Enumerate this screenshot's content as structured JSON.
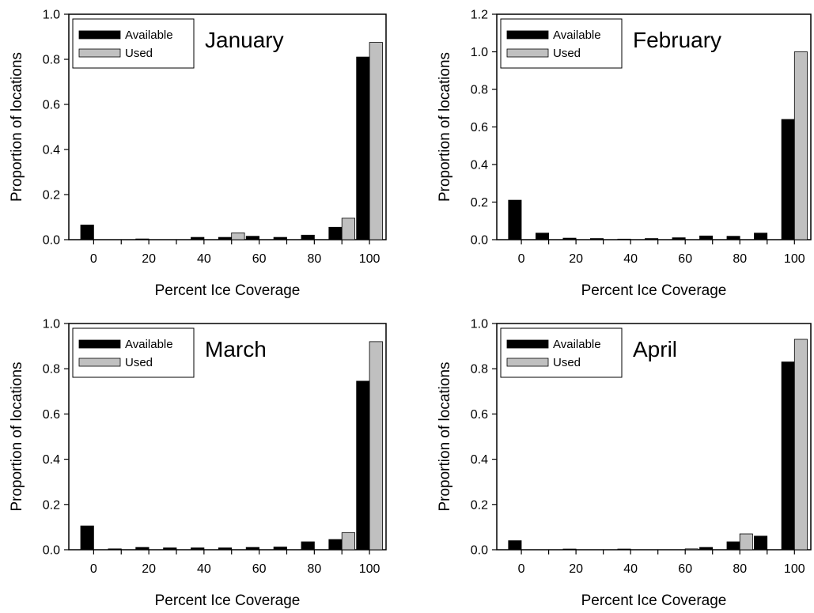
{
  "colors": {
    "available": "#000000",
    "used": "#c0c0c0",
    "axis": "#000000"
  },
  "chart_data": [
    {
      "type": "bar",
      "annotation": "January",
      "xlabel": "Percent Ice Coverage",
      "ylabel": "Proportion of locations",
      "xticks": [
        "0",
        "20",
        "40",
        "60",
        "80",
        "100"
      ],
      "yticks": [
        "0.0",
        "0.2",
        "0.4",
        "0.6",
        "0.8",
        "1.0"
      ],
      "ylim": [
        0,
        1.0
      ],
      "categories": [
        0,
        10,
        20,
        30,
        40,
        50,
        60,
        70,
        80,
        90,
        100
      ],
      "legend": {
        "position": "top-left",
        "entries": [
          "Available",
          "Used"
        ]
      },
      "series": [
        {
          "name": "Available",
          "values": [
            0.065,
            0,
            0.003,
            0,
            0.01,
            0.01,
            0.015,
            0.01,
            0.02,
            0.055,
            0.81
          ]
        },
        {
          "name": "Used",
          "values": [
            0,
            0,
            0,
            0,
            0,
            0.03,
            0,
            0,
            0,
            0.095,
            0.875
          ]
        }
      ]
    },
    {
      "type": "bar",
      "annotation": "February",
      "xlabel": "Percent Ice Coverage",
      "ylabel": "Proportion of locations",
      "xticks": [
        "0",
        "20",
        "40",
        "60",
        "80",
        "100"
      ],
      "yticks": [
        "0.0",
        "0.2",
        "0.4",
        "0.6",
        "0.8",
        "1.0",
        "1.2"
      ],
      "ylim": [
        0,
        1.2
      ],
      "categories": [
        0,
        10,
        20,
        30,
        40,
        50,
        60,
        70,
        80,
        90,
        100
      ],
      "legend": {
        "position": "top-left",
        "entries": [
          "Available",
          "Used"
        ]
      },
      "series": [
        {
          "name": "Available",
          "values": [
            0.21,
            0.035,
            0.008,
            0.006,
            0.003,
            0.006,
            0.01,
            0.02,
            0.018,
            0.035,
            0.64
          ]
        },
        {
          "name": "Used",
          "values": [
            0,
            0,
            0,
            0,
            0,
            0,
            0,
            0,
            0,
            0,
            1.0
          ]
        }
      ]
    },
    {
      "type": "bar",
      "annotation": "March",
      "xlabel": "Percent Ice Coverage",
      "ylabel": "Proportion of locations",
      "xticks": [
        "0",
        "20",
        "40",
        "60",
        "80",
        "100"
      ],
      "yticks": [
        "0.0",
        "0.2",
        "0.4",
        "0.6",
        "0.8",
        "1.0"
      ],
      "ylim": [
        0,
        1.0
      ],
      "categories": [
        0,
        10,
        20,
        30,
        40,
        50,
        60,
        70,
        80,
        90,
        100
      ],
      "legend": {
        "position": "top-left",
        "entries": [
          "Available",
          "Used"
        ]
      },
      "series": [
        {
          "name": "Available",
          "values": [
            0.105,
            0.004,
            0.01,
            0.008,
            0.008,
            0.008,
            0.01,
            0.012,
            0.035,
            0.045,
            0.745
          ]
        },
        {
          "name": "Used",
          "values": [
            0,
            0,
            0,
            0,
            0,
            0,
            0,
            0,
            0,
            0.075,
            0.92
          ]
        }
      ]
    },
    {
      "type": "bar",
      "annotation": "April",
      "xlabel": "Percent Ice Coverage",
      "ylabel": "Proportion of locations",
      "xticks": [
        "0",
        "20",
        "40",
        "60",
        "80",
        "100"
      ],
      "yticks": [
        "0.0",
        "0.2",
        "0.4",
        "0.6",
        "0.8",
        "1.0"
      ],
      "ylim": [
        0,
        1.0
      ],
      "categories": [
        0,
        10,
        20,
        30,
        40,
        50,
        60,
        70,
        80,
        90,
        100
      ],
      "legend": {
        "position": "top-left",
        "entries": [
          "Available",
          "Used"
        ]
      },
      "series": [
        {
          "name": "Available",
          "values": [
            0.04,
            0,
            0.003,
            0,
            0.003,
            0,
            0,
            0.01,
            0.035,
            0.06,
            0.83
          ]
        },
        {
          "name": "Used",
          "values": [
            0,
            0,
            0,
            0,
            0,
            0,
            0.004,
            0,
            0.07,
            0,
            0.93
          ]
        }
      ]
    }
  ]
}
